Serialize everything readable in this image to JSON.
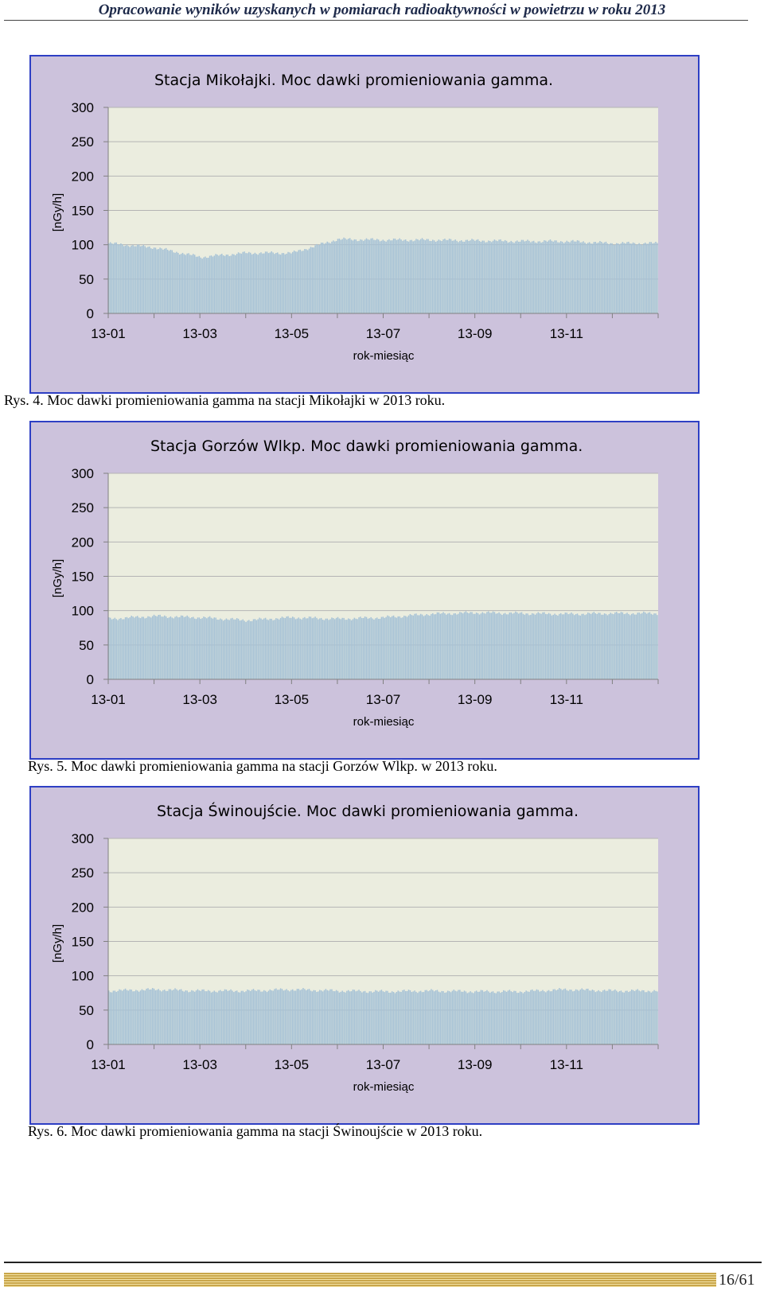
{
  "header": {
    "title": "Opracowanie wyników uzyskanych w pomiarach radioaktywności w powietrzu w roku 2013"
  },
  "colors": {
    "panel_bg": "#ccc2dc",
    "panel_border": "#2e3fc4",
    "plot_bg": "#ebeddf",
    "bar": "#a6c2d6",
    "grid": "#b4b4b4"
  },
  "chart_data": [
    {
      "type": "bar",
      "title": "Stacja Mikołajki. Moc dawki promieniowania gamma.",
      "xlabel": "rok-miesiąc",
      "ylabel": "[nGy/h]",
      "ylim": [
        0,
        300
      ],
      "yticks": [
        "0",
        "50",
        "100",
        "150",
        "200",
        "250",
        "300"
      ],
      "xticks": [
        "13-01",
        "13-03",
        "13-05",
        "13-07",
        "13-09",
        "13-11"
      ],
      "x": [
        "13-01",
        "13-02",
        "13-03",
        "13-04",
        "13-05",
        "13-06",
        "13-07",
        "13-08",
        "13-09",
        "13-10",
        "13-11",
        "13-12"
      ],
      "values": [
        102,
        96,
        82,
        88,
        88,
        108,
        107,
        107,
        106,
        105,
        105,
        102
      ],
      "grid": true
    },
    {
      "type": "bar",
      "title": "Stacja Gorzów Wlkp. Moc dawki promieniowania gamma.",
      "xlabel": "rok-miesiąc",
      "ylabel": "[nGy/h]",
      "ylim": [
        0,
        300
      ],
      "yticks": [
        "0",
        "50",
        "100",
        "150",
        "200",
        "250",
        "300"
      ],
      "xticks": [
        "13-01",
        "13-03",
        "13-05",
        "13-07",
        "13-09",
        "13-11"
      ],
      "x": [
        "13-01",
        "13-02",
        "13-03",
        "13-04",
        "13-05",
        "13-06",
        "13-07",
        "13-08",
        "13-09",
        "13-10",
        "13-11",
        "13-12"
      ],
      "values": [
        88,
        92,
        90,
        86,
        90,
        88,
        90,
        95,
        97,
        96,
        95,
        96
      ],
      "grid": true
    },
    {
      "type": "bar",
      "title": "Stacja Świnoujście. Moc dawki promieniowania gamma.",
      "xlabel": "rok-miesiąc",
      "ylabel": "[nGy/h]",
      "ylim": [
        0,
        300
      ],
      "yticks": [
        "0",
        "50",
        "100",
        "150",
        "200",
        "250",
        "300"
      ],
      "xticks": [
        "13-01",
        "13-03",
        "13-05",
        "13-07",
        "13-09",
        "13-11"
      ],
      "x": [
        "13-01",
        "13-02",
        "13-03",
        "13-04",
        "13-05",
        "13-06",
        "13-07",
        "13-08",
        "13-09",
        "13-10",
        "13-11",
        "13-12"
      ],
      "values": [
        78,
        80,
        78,
        78,
        80,
        78,
        77,
        78,
        77,
        77,
        80,
        78
      ],
      "grid": true
    }
  ],
  "captions": [
    "Rys. 4. Moc dawki promieniowania gamma na stacji Mikołajki w 2013 roku.",
    "Rys. 5. Moc dawki promieniowania gamma na stacji Gorzów Wlkp. w 2013 roku.",
    "Rys. 6. Moc dawki promieniowania gamma na stacji Świnoujście w 2013 roku."
  ],
  "footer": {
    "page_number": "16/61"
  }
}
